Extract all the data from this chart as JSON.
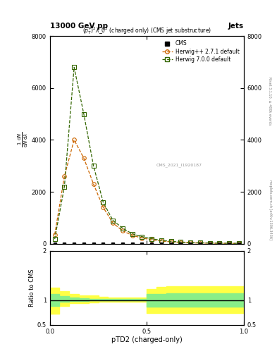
{
  "title_top": "13000 GeV pp",
  "title_right": "Jets",
  "inner_title": "$(p_{T}^{p})^{2}\\lambda\\_0^{2}$ (charged only) (CMS jet substructure)",
  "xlabel": "pTD2 (charged-only)",
  "ylabel_ratio": "Ratio to CMS",
  "right_label_top": "Rivet 3.1.10, ≥ 400k events",
  "right_label_bot": "mcplots.cern.ch [arXiv:1306.3436]",
  "cms_id": "CMS_2021_I1920187",
  "herwig271_x": [
    0.025,
    0.075,
    0.125,
    0.175,
    0.225,
    0.275,
    0.325,
    0.375,
    0.425,
    0.475,
    0.525,
    0.575,
    0.625,
    0.675,
    0.725,
    0.775,
    0.825,
    0.875,
    0.925,
    0.975
  ],
  "herwig271_y": [
    350,
    2600,
    4000,
    3300,
    2300,
    1400,
    800,
    500,
    320,
    220,
    150,
    100,
    70,
    50,
    35,
    25,
    20,
    15,
    12,
    10
  ],
  "herwig700_x": [
    0.025,
    0.075,
    0.125,
    0.175,
    0.225,
    0.275,
    0.325,
    0.375,
    0.425,
    0.475,
    0.525,
    0.575,
    0.625,
    0.675,
    0.725,
    0.775,
    0.825,
    0.875,
    0.925,
    0.975
  ],
  "herwig700_y": [
    180,
    2200,
    6800,
    5000,
    3000,
    1600,
    900,
    600,
    380,
    270,
    190,
    130,
    90,
    65,
    45,
    35,
    28,
    22,
    17,
    14
  ],
  "cms_x": [
    0.025,
    0.075,
    0.125,
    0.175,
    0.225,
    0.275,
    0.325,
    0.375,
    0.425,
    0.475,
    0.525,
    0.575,
    0.625,
    0.675,
    0.725,
    0.775,
    0.825,
    0.875,
    0.925,
    0.975
  ],
  "cms_y": [
    0,
    0,
    0,
    0,
    0,
    0,
    0,
    0,
    0,
    0,
    0,
    0,
    0,
    0,
    0,
    0,
    0,
    0,
    0,
    0
  ],
  "yellow_band_edges": [
    0.0,
    0.05,
    0.1,
    0.15,
    0.2,
    0.25,
    0.3,
    0.35,
    0.4,
    0.45,
    0.5,
    0.55,
    0.6,
    0.65,
    0.7,
    0.75,
    0.8,
    0.85,
    0.9,
    0.95,
    1.0
  ],
  "yellow_low": [
    0.72,
    0.88,
    0.94,
    0.94,
    0.96,
    0.97,
    0.97,
    0.97,
    0.97,
    0.97,
    0.74,
    0.74,
    0.74,
    0.74,
    0.74,
    0.74,
    0.74,
    0.74,
    0.74,
    0.74,
    0.74
  ],
  "yellow_high": [
    1.25,
    1.18,
    1.12,
    1.1,
    1.09,
    1.07,
    1.06,
    1.05,
    1.05,
    1.05,
    1.22,
    1.27,
    1.28,
    1.28,
    1.28,
    1.28,
    1.28,
    1.28,
    1.28,
    1.28,
    1.28
  ],
  "green_low": [
    0.88,
    0.97,
    0.98,
    0.98,
    0.99,
    0.99,
    0.99,
    0.99,
    0.99,
    0.99,
    0.87,
    0.87,
    0.87,
    0.87,
    0.87,
    0.87,
    0.87,
    0.87,
    0.87,
    0.87,
    0.87
  ],
  "green_high": [
    1.12,
    1.08,
    1.05,
    1.04,
    1.03,
    1.02,
    1.02,
    1.02,
    1.02,
    1.02,
    1.13,
    1.13,
    1.14,
    1.14,
    1.14,
    1.14,
    1.14,
    1.14,
    1.14,
    1.14,
    1.14
  ],
  "color_herwig271": "#cc6600",
  "color_herwig700": "#336600",
  "color_cms": "#000000",
  "color_yellow": "#ffff44",
  "color_green": "#88ee88",
  "ylim_main": [
    0,
    8000
  ],
  "yticks_main": [
    0,
    2000,
    4000,
    6000,
    8000
  ],
  "ylim_ratio": [
    0.5,
    2.0
  ],
  "yticks_ratio": [
    0.5,
    1.0,
    2.0
  ],
  "xlim": [
    0.0,
    1.0
  ],
  "xticks": [
    0.0,
    0.5,
    1.0
  ]
}
